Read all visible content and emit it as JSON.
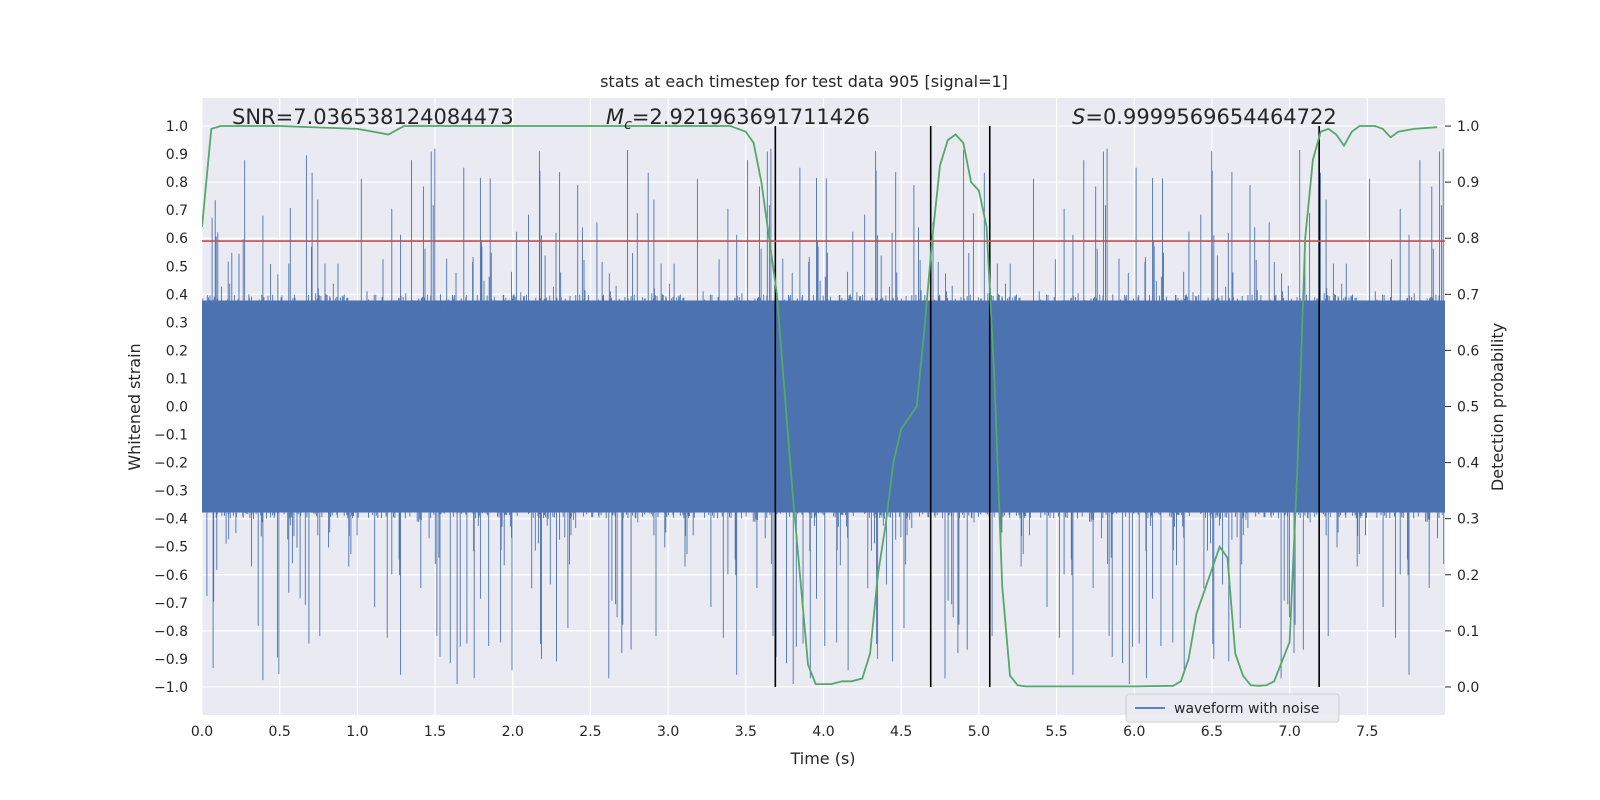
{
  "chart_data": {
    "type": "line",
    "title": "stats at each timestep for test data 905 [signal=1]",
    "xlabel": "Time (s)",
    "ylabel_left": "Whitened strain",
    "ylabel_right": "Detection probability",
    "xlim": [
      0.0,
      8.0
    ],
    "ylim_left": [
      -1.1,
      1.1
    ],
    "ylim_right": [
      -0.05,
      1.05
    ],
    "x_ticks": [
      "0.0",
      "0.5",
      "1.0",
      "1.5",
      "2.0",
      "2.5",
      "3.0",
      "3.5",
      "4.0",
      "4.5",
      "5.0",
      "5.5",
      "6.0",
      "6.5",
      "7.0",
      "7.5"
    ],
    "y_left_ticks": [
      "1.0",
      "0.9",
      "0.8",
      "0.7",
      "0.6",
      "0.5",
      "0.4",
      "0.3",
      "0.2",
      "0.1",
      "0.0",
      "−0.1",
      "−0.2",
      "−0.3",
      "−0.4",
      "−0.5",
      "−0.6",
      "−0.7",
      "−0.8",
      "−0.9",
      "−1.0"
    ],
    "y_right_ticks": [
      "1.0",
      "0.9",
      "0.8",
      "0.7",
      "0.6",
      "0.5",
      "0.4",
      "0.3",
      "0.2",
      "0.1",
      "0.0"
    ],
    "grid": true,
    "background": "#eaeaf2",
    "annotations": {
      "snr": "SNR=7.036538124084473",
      "mc_symbol": "M",
      "mc_sub": "c",
      "mc_value": "=2.921963691711426",
      "s_symbol": "S",
      "s_value": "=0.9999569654464722"
    },
    "threshold": {
      "y_left": 0.59,
      "color": "#c44e52"
    },
    "vertical_lines": {
      "x": [
        3.69,
        4.69,
        5.07,
        7.19
      ],
      "color": "#000000"
    },
    "legend": {
      "entries": [
        "waveform with noise"
      ],
      "position": "lower-right"
    },
    "series": [
      {
        "name": "waveform with noise",
        "axis": "left",
        "color": "#4c72b0",
        "kind": "noise",
        "typical_envelope": [
          -0.42,
          0.42
        ],
        "peak_max": 0.93,
        "peak_min": -0.99
      },
      {
        "axis": "right",
        "color": "#55a868",
        "x": [
          0.0,
          0.06,
          0.12,
          0.5,
          1.0,
          1.2,
          1.3,
          2.0,
          2.5,
          3.0,
          3.4,
          3.5,
          3.55,
          3.6,
          3.7,
          3.8,
          3.9,
          3.95,
          4.05,
          4.12,
          4.18,
          4.25,
          4.3,
          4.35,
          4.4,
          4.45,
          4.5,
          4.55,
          4.6,
          4.65,
          4.7,
          4.75,
          4.8,
          4.85,
          4.9,
          4.95,
          5.0,
          5.05,
          5.1,
          5.15,
          5.2,
          5.25,
          5.3,
          5.5,
          6.0,
          6.25,
          6.3,
          6.35,
          6.4,
          6.45,
          6.5,
          6.55,
          6.6,
          6.65,
          6.7,
          6.75,
          6.8,
          6.85,
          6.9,
          7.0,
          7.05,
          7.1,
          7.15,
          7.2,
          7.25,
          7.3,
          7.35,
          7.4,
          7.45,
          7.5,
          7.55,
          7.6,
          7.65,
          7.7,
          7.8,
          7.95
        ],
        "values": [
          0.82,
          0.995,
          1.0,
          1.0,
          0.995,
          0.985,
          1.0,
          1.0,
          1.0,
          1.0,
          1.0,
          0.99,
          0.97,
          0.9,
          0.7,
          0.35,
          0.04,
          0.005,
          0.005,
          0.01,
          0.01,
          0.015,
          0.06,
          0.2,
          0.29,
          0.4,
          0.46,
          0.48,
          0.5,
          0.64,
          0.8,
          0.93,
          0.975,
          0.985,
          0.97,
          0.9,
          0.885,
          0.82,
          0.55,
          0.18,
          0.02,
          0.003,
          0.001,
          0.001,
          0.001,
          0.002,
          0.01,
          0.05,
          0.13,
          0.17,
          0.21,
          0.25,
          0.23,
          0.06,
          0.02,
          0.003,
          0.002,
          0.003,
          0.01,
          0.08,
          0.39,
          0.8,
          0.94,
          0.99,
          0.995,
          0.985,
          0.965,
          0.99,
          1.0,
          1.0,
          1.0,
          0.995,
          0.98,
          0.99,
          0.995,
          0.998
        ]
      }
    ]
  }
}
